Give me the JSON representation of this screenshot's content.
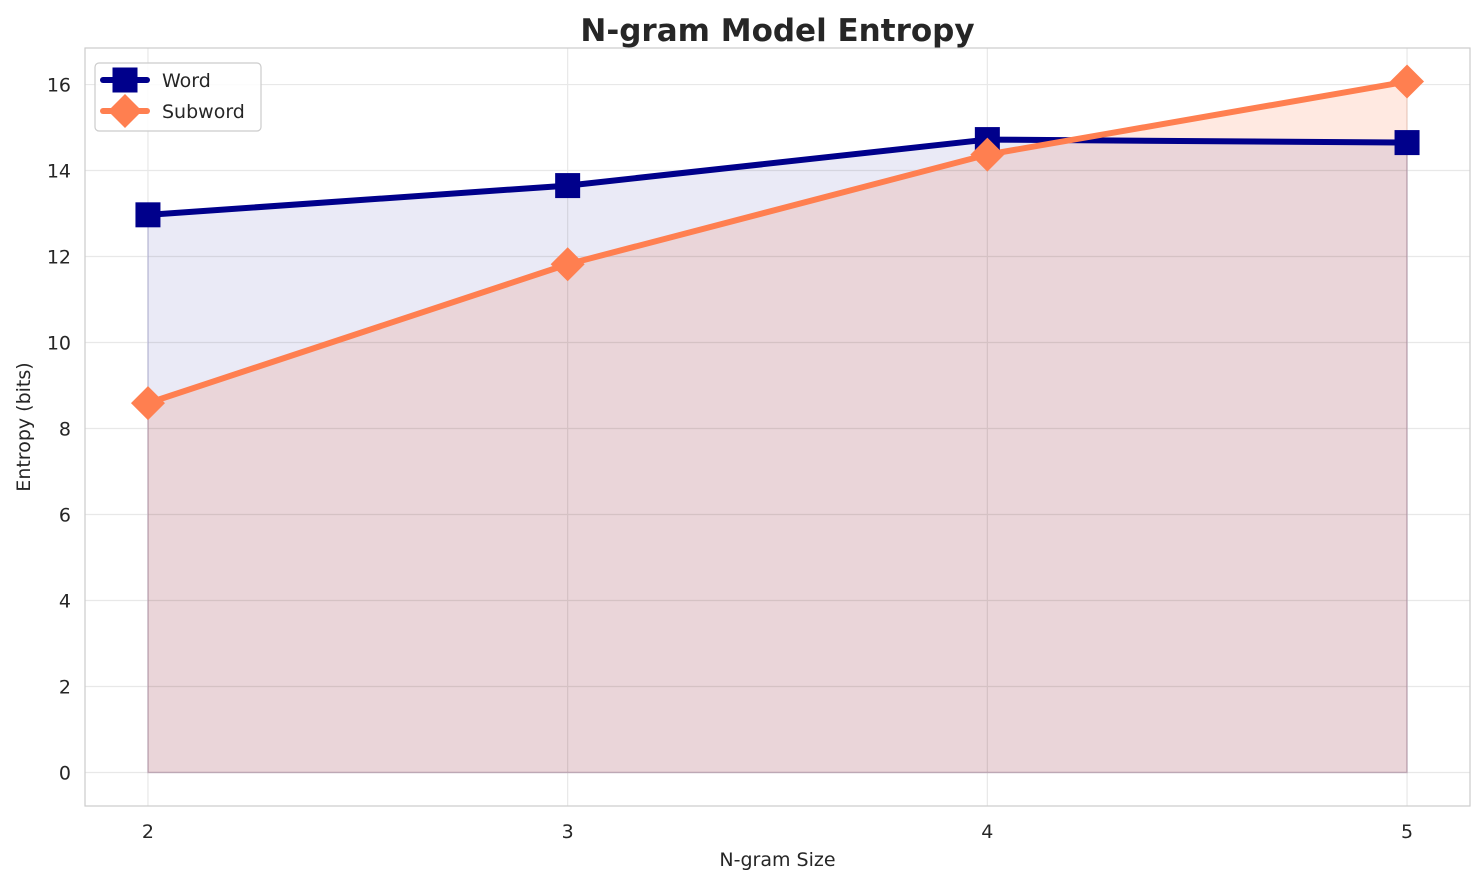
{
  "chart_data": {
    "type": "line",
    "title": "N-gram Model Entropy",
    "xlabel": "N-gram Size",
    "ylabel": "Entropy (bits)",
    "x": [
      2,
      3,
      4,
      5
    ],
    "x_tick_labels": [
      "2",
      "3",
      "4",
      "5"
    ],
    "xlim": [
      1.85,
      5.15
    ],
    "ylim": [
      -0.78,
      16.85
    ],
    "y_ticks": [
      0,
      2,
      4,
      6,
      8,
      10,
      12,
      14,
      16
    ],
    "y_tick_labels": [
      "0",
      "2",
      "4",
      "6",
      "8",
      "10",
      "12",
      "14",
      "16"
    ],
    "grid": true,
    "area_fill": true,
    "legend_position": "top-left",
    "series": [
      {
        "name": "Word",
        "values": [
          12.97,
          13.65,
          14.72,
          14.65
        ],
        "color": "#00008B",
        "fill_color": "#E6E6F4",
        "marker": "square"
      },
      {
        "name": "Subword",
        "values": [
          8.59,
          11.82,
          14.37,
          16.07
        ],
        "color": "#FF7F50",
        "fill_color": "#FFE5DC",
        "marker": "diamond"
      }
    ]
  }
}
